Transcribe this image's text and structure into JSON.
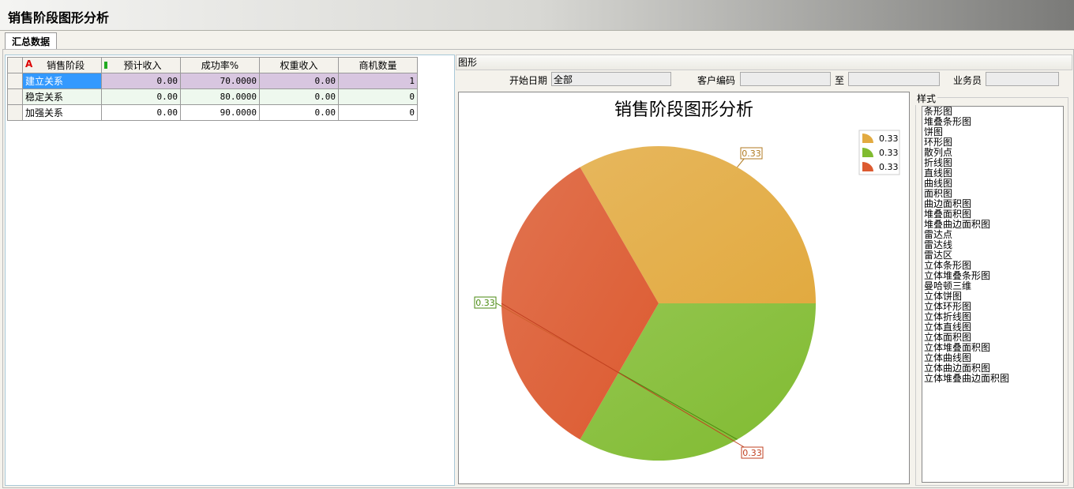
{
  "window": {
    "title": "销售阶段图形分析"
  },
  "tabs": [
    {
      "label": "汇总数据"
    }
  ],
  "table": {
    "columns": [
      "销售阶段",
      "预计收入",
      "成功率%",
      "权重收入",
      "商机数量"
    ],
    "rows": [
      [
        "建立关系",
        "0.00",
        "70.0000",
        "0.00",
        "1"
      ],
      [
        "稳定关系",
        "0.00",
        "80.0000",
        "0.00",
        "0"
      ],
      [
        "加强关系",
        "0.00",
        "90.0000",
        "0.00",
        "0"
      ]
    ]
  },
  "panel": {
    "title": "图形"
  },
  "filters": {
    "start_date_label": "开始日期",
    "start_date_value": "全部",
    "customer_label": "客户编码",
    "customer_value": "",
    "to_label": "至",
    "to_value": "",
    "salesman_label": "业务员",
    "salesman_value": ""
  },
  "styles": {
    "title": "样式",
    "items": [
      "条形图",
      "堆叠条形图",
      "饼图",
      "环形图",
      "散列点",
      "折线图",
      "直线图",
      "曲线图",
      "面积图",
      "曲边面积图",
      "堆叠面积图",
      "堆叠曲边面积图",
      "雷达点",
      "雷达线",
      "雷达区",
      "立体条形图",
      "立体堆叠条形图",
      "曼哈顿三维",
      "立体饼图",
      "立体环形图",
      "立体折线图",
      "立体直线图",
      "立体面积图",
      "立体堆叠面积图",
      "立体曲线图",
      "立体曲边面积图",
      "立体堆叠曲边面积图"
    ]
  },
  "chart_data": {
    "type": "pie",
    "title": "销售阶段图形分析",
    "values": [
      0.33,
      0.33,
      0.33
    ],
    "data_labels": [
      "0.33",
      "0.33",
      "0.33"
    ],
    "legend": [
      "0.33",
      "0.33",
      "0.33"
    ],
    "legend_position": "top-right",
    "colors": [
      "#e2aa40",
      "#80bb30",
      "#dc5a30"
    ]
  }
}
